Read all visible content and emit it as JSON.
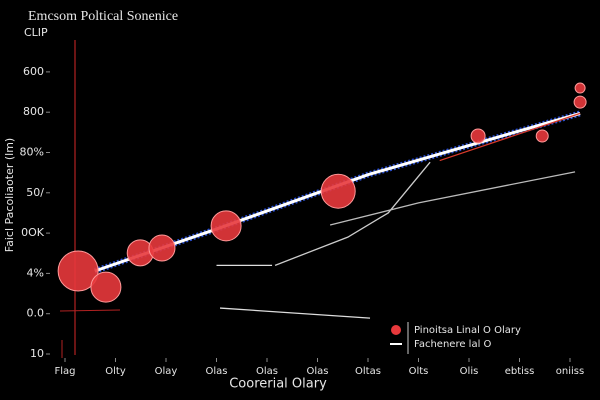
{
  "chart_data": {
    "type": "scatter",
    "title": "Emcsom Poltical Sonenice",
    "y_unit": "CLIP",
    "ylabel": "Faicl Pacoliaoter (lm)",
    "xlabel": "Coorerial Olary",
    "xlim": [
      -0.2,
      10.4
    ],
    "ylim": [
      0,
      7
    ],
    "xticks": [
      {
        "value": 0,
        "label": "Flag"
      },
      {
        "value": 1,
        "label": "Olty"
      },
      {
        "value": 2,
        "label": "Olay"
      },
      {
        "value": 3,
        "label": "Olas"
      },
      {
        "value": 4,
        "label": "Olas"
      },
      {
        "value": 5,
        "label": "Olas"
      },
      {
        "value": 6,
        "label": "Oltas"
      },
      {
        "value": 7,
        "label": "Olts"
      },
      {
        "value": 8,
        "label": "Olis"
      },
      {
        "value": 9,
        "label": "ebtiss"
      },
      {
        "value": 10,
        "label": "oniiss"
      }
    ],
    "yticks": [
      {
        "value": 0,
        "label": "10"
      },
      {
        "value": 1,
        "label": "0.0"
      },
      {
        "value": 2,
        "label": "4%"
      },
      {
        "value": 3,
        "label": "0OK"
      },
      {
        "value": 4,
        "label": "50/"
      },
      {
        "value": 5,
        "label": "80%"
      },
      {
        "value": 6,
        "label": "800"
      },
      {
        "value": 7,
        "label": "600"
      }
    ],
    "series": [
      {
        "name": "Pinoitsa Linal O Olary",
        "color": "#e8393c",
        "kind": "bubble",
        "x": [
          0.26,
          0.81,
          1.49,
          1.92,
          3.19,
          5.41,
          8.18,
          9.45,
          10.2,
          10.2
        ],
        "values": [
          2.06,
          1.66,
          2.51,
          2.63,
          3.18,
          4.04,
          5.41,
          5.41,
          6.6,
          6.25
        ],
        "sizes": [
          20,
          15,
          13,
          13,
          15,
          17,
          7,
          6,
          5,
          6
        ]
      },
      {
        "name": "Fachenere lal O",
        "color": "#ffffff",
        "kind": "line",
        "x": [
          0.59,
          3.0,
          6.0,
          10.2
        ],
        "values": [
          2.06,
          3.1,
          4.45,
          5.97
        ]
      },
      {
        "color": "#d83a2c",
        "kind": "line",
        "x": [
          7.42,
          10.2
        ],
        "values": [
          4.8,
          5.97
        ]
      },
      {
        "color": "#cccccc",
        "kind": "line",
        "x": [
          4.16,
          5.6,
          6.4,
          7.23
        ],
        "values": [
          2.2,
          2.9,
          3.5,
          4.76
        ]
      },
      {
        "color": "#bbbbbb",
        "kind": "line",
        "x": [
          5.25,
          7.0,
          10.1
        ],
        "values": [
          3.2,
          3.75,
          4.52
        ]
      },
      {
        "color": "#dddddd",
        "kind": "line",
        "x": [
          3.0,
          4.1
        ],
        "values": [
          2.2,
          2.2
        ]
      },
      {
        "color": "#dddddd",
        "kind": "line",
        "x": [
          3.07,
          6.04
        ],
        "values": [
          1.14,
          0.89
        ]
      }
    ]
  }
}
